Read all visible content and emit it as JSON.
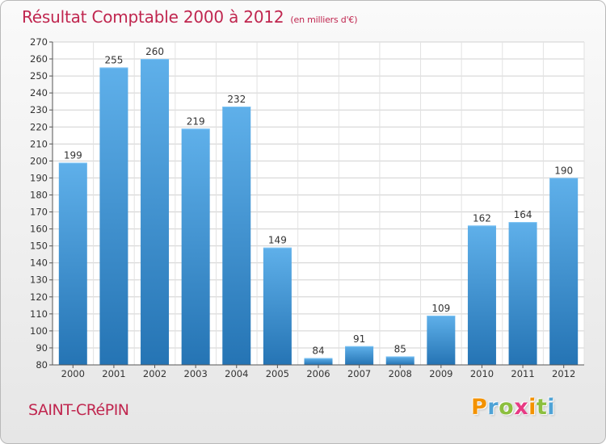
{
  "title": {
    "main": "Résultat Comptable 2000 à 2012",
    "sub": "(en milliers d'€)"
  },
  "commune": "SAINT-CRéPIN",
  "logo": {
    "text": "Proxiti",
    "letters": [
      {
        "ch": "P",
        "color": "#f39200"
      },
      {
        "ch": "r",
        "color": "#4fa3d6"
      },
      {
        "ch": "o",
        "color": "#8cbf3f"
      },
      {
        "ch": "x",
        "color": "#e73a84"
      },
      {
        "ch": "i",
        "color": "#f39200"
      },
      {
        "ch": "t",
        "color": "#8cbf3f"
      },
      {
        "ch": "i",
        "color": "#4fa3d6"
      }
    ]
  },
  "colors": {
    "accent": "#c0264f",
    "bar_top": "#5fb0ea",
    "bar_bottom": "#2574b4"
  },
  "chart_data": {
    "type": "bar",
    "title": "Résultat Comptable 2000 à 2012",
    "subtitle": "(en milliers d'€)",
    "xlabel": "",
    "ylabel": "",
    "categories": [
      "2000",
      "2001",
      "2002",
      "2003",
      "2004",
      "2005",
      "2006",
      "2007",
      "2008",
      "2009",
      "2010",
      "2011",
      "2012"
    ],
    "values": [
      199,
      255,
      260,
      219,
      232,
      149,
      84,
      91,
      85,
      109,
      162,
      164,
      190
    ],
    "ylim": [
      80,
      270
    ],
    "yticks": [
      80,
      90,
      100,
      110,
      120,
      130,
      140,
      150,
      160,
      170,
      180,
      190,
      200,
      210,
      220,
      230,
      240,
      250,
      260,
      270
    ],
    "grid": true,
    "legend": "none"
  }
}
